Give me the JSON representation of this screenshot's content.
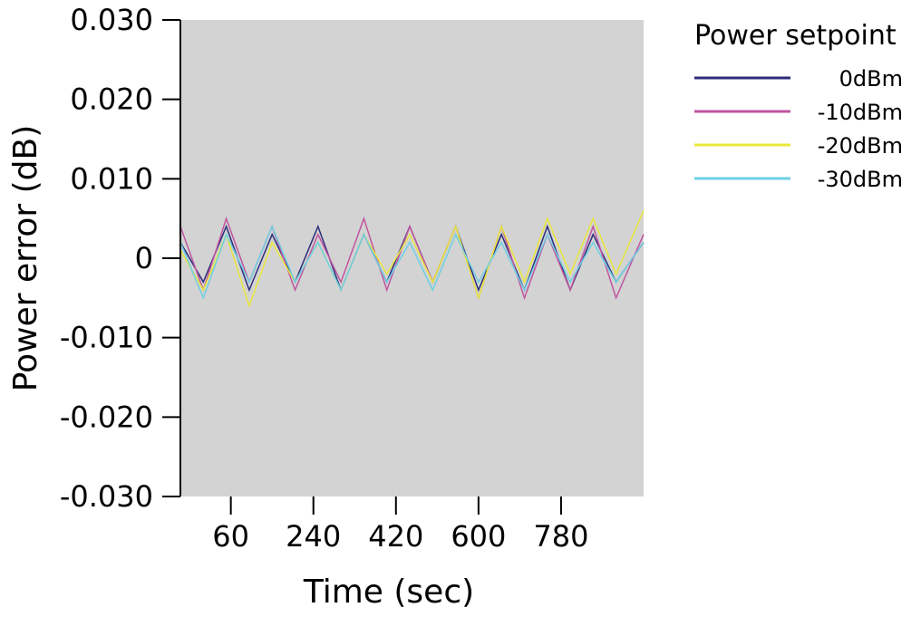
{
  "chart_data": {
    "type": "line",
    "xlabel": "Time (sec)",
    "ylabel": "Power error (dB)",
    "xlim": [
      -50,
      960
    ],
    "ylim": [
      -0.03,
      0.03
    ],
    "x_ticks": [
      60,
      240,
      420,
      600,
      780
    ],
    "x_tick_labels": [
      "60",
      "240",
      "420",
      "600",
      "780"
    ],
    "y_ticks": [
      0.03,
      0.02,
      0.01,
      0,
      -0.01,
      -0.02,
      -0.03
    ],
    "y_tick_labels": [
      "0.030",
      "0.020",
      "0.010",
      "0",
      "-0.010",
      "-0.020",
      "-0.030"
    ],
    "plot_background": "#d3d3d3",
    "grid": false,
    "legend": {
      "title": "Power setpoint",
      "position": "outside-right-top"
    },
    "series": [
      {
        "name": "0dBm",
        "color": "#2b2d7a",
        "x": [
          -50,
          0,
          50,
          100,
          150,
          200,
          250,
          300,
          350,
          400,
          450,
          500,
          550,
          600,
          650,
          700,
          750,
          800,
          850,
          900,
          960
        ],
        "values": [
          0.002,
          -0.003,
          0.004,
          -0.004,
          0.003,
          -0.003,
          0.004,
          -0.004,
          0.003,
          -0.003,
          0.004,
          -0.003,
          0.004,
          -0.004,
          0.003,
          -0.004,
          0.004,
          -0.004,
          0.003,
          -0.003,
          0.002
        ]
      },
      {
        "name": "-10dBm",
        "color": "#c154a0",
        "x": [
          -50,
          0,
          50,
          100,
          150,
          200,
          250,
          300,
          350,
          400,
          450,
          500,
          550,
          600,
          650,
          700,
          750,
          800,
          850,
          900,
          960
        ],
        "values": [
          0.004,
          -0.004,
          0.005,
          -0.003,
          0.004,
          -0.004,
          0.003,
          -0.003,
          0.005,
          -0.004,
          0.004,
          -0.003,
          0.004,
          -0.005,
          0.004,
          -0.005,
          0.003,
          -0.004,
          0.004,
          -0.005,
          0.003
        ]
      },
      {
        "name": "-20dBm",
        "color": "#e8e83a",
        "x": [
          -50,
          0,
          50,
          100,
          150,
          200,
          250,
          300,
          350,
          400,
          450,
          500,
          550,
          600,
          650,
          700,
          750,
          800,
          850,
          900,
          960
        ],
        "values": [
          0.001,
          -0.004,
          0.003,
          -0.006,
          0.002,
          -0.003,
          0.002,
          -0.004,
          0.003,
          -0.002,
          0.003,
          -0.003,
          0.004,
          -0.005,
          0.004,
          -0.003,
          0.005,
          -0.002,
          0.005,
          -0.002,
          0.006
        ]
      },
      {
        "name": "-30dBm",
        "color": "#6ecfe3",
        "x": [
          -50,
          0,
          50,
          100,
          150,
          200,
          250,
          300,
          350,
          400,
          450,
          500,
          550,
          600,
          650,
          700,
          750,
          800,
          850,
          900,
          960
        ],
        "values": [
          0.002,
          -0.005,
          0.003,
          -0.003,
          0.004,
          -0.003,
          0.002,
          -0.004,
          0.003,
          -0.003,
          0.002,
          -0.004,
          0.003,
          -0.003,
          0.002,
          -0.004,
          0.003,
          -0.003,
          0.002,
          -0.003,
          0.002
        ]
      }
    ]
  }
}
